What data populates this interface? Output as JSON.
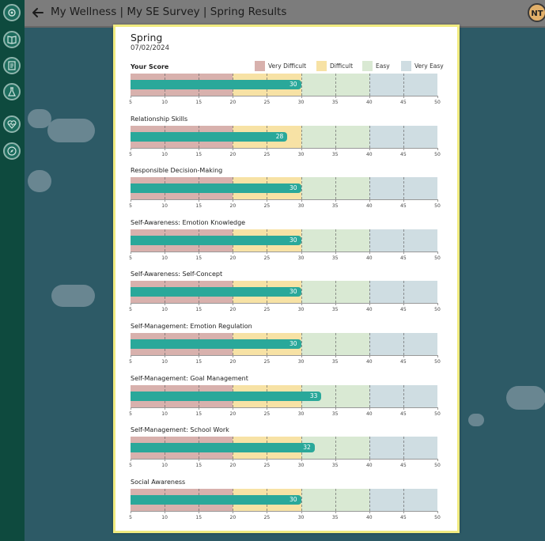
{
  "header": {
    "breadcrumb": "My Wellness | My SE Survey | Spring Results",
    "avatar_initials": "NT"
  },
  "sidebar": {
    "items": [
      {
        "icon": "logo-icon"
      },
      {
        "icon": "book-icon"
      },
      {
        "icon": "notebook-icon"
      },
      {
        "icon": "flask-icon"
      },
      {
        "icon": "heart-pulse-icon"
      },
      {
        "icon": "compass-icon"
      }
    ]
  },
  "panel": {
    "title": "Spring",
    "date": "07/02/2024"
  },
  "legend": [
    {
      "label": "Very Difficult",
      "color": "#d8b1ad"
    },
    {
      "label": "Difficult",
      "color": "#f7e2a5"
    },
    {
      "label": "Easy",
      "color": "#d9e9d3"
    },
    {
      "label": "Very Easy",
      "color": "#cfdde2"
    }
  ],
  "colors": {
    "bar": "#2aa89a",
    "very_difficult": "#d8b1ad",
    "difficult": "#f7e2a5",
    "easy": "#d9e9d3",
    "very_easy": "#cfdde2"
  },
  "chart_data": {
    "type": "bar",
    "orientation": "horizontal",
    "axis": {
      "min": 5,
      "max": 50,
      "ticks": [
        5,
        10,
        15,
        20,
        25,
        30,
        35,
        40,
        45,
        50
      ]
    },
    "bands": [
      {
        "label": "Very Difficult",
        "from": 5,
        "to": 20
      },
      {
        "label": "Difficult",
        "from": 20,
        "to": 30
      },
      {
        "label": "Easy",
        "from": 30,
        "to": 40
      },
      {
        "label": "Very Easy",
        "from": 40,
        "to": 50
      }
    ],
    "series": [
      {
        "name": "Your Score",
        "value": 30
      },
      {
        "name": "Relationship Skills",
        "value": 28
      },
      {
        "name": "Responsible Decision-Making",
        "value": 30
      },
      {
        "name": "Self-Awareness: Emotion Knowledge",
        "value": 30
      },
      {
        "name": "Self-Awareness: Self-Concept",
        "value": 30
      },
      {
        "name": "Self-Management: Emotion Regulation",
        "value": 30
      },
      {
        "name": "Self-Management: Goal Management",
        "value": 33
      },
      {
        "name": "Self-Management: School Work",
        "value": 32
      },
      {
        "name": "Social Awareness",
        "value": 30
      }
    ]
  }
}
